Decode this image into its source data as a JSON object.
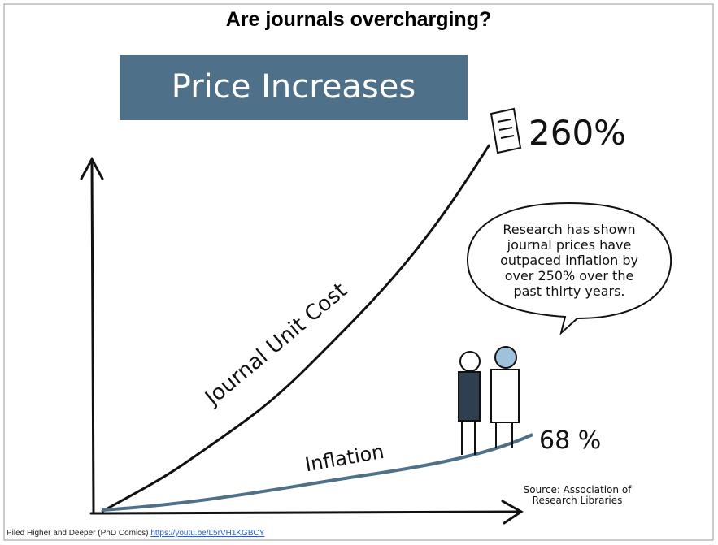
{
  "header": {
    "title": "Are journals overcharging?"
  },
  "banner": {
    "text": "Price Increases"
  },
  "illustration": {
    "journal_label": "Journal Unit Cost",
    "journal_end": "260%",
    "inflation_label": "Inflation",
    "inflation_end": "68 %",
    "speech": [
      "Research has shown",
      "journal prices have",
      "outpaced inflation by",
      "over 250% over the",
      "past thirty years."
    ],
    "source": [
      "Source: Association of",
      "Research Libraries"
    ]
  },
  "credit": {
    "text": "Piled Higher and Deeper (PhD Comics)",
    "link": "https://youtu.be/L5rVH1KGBCY"
  }
}
